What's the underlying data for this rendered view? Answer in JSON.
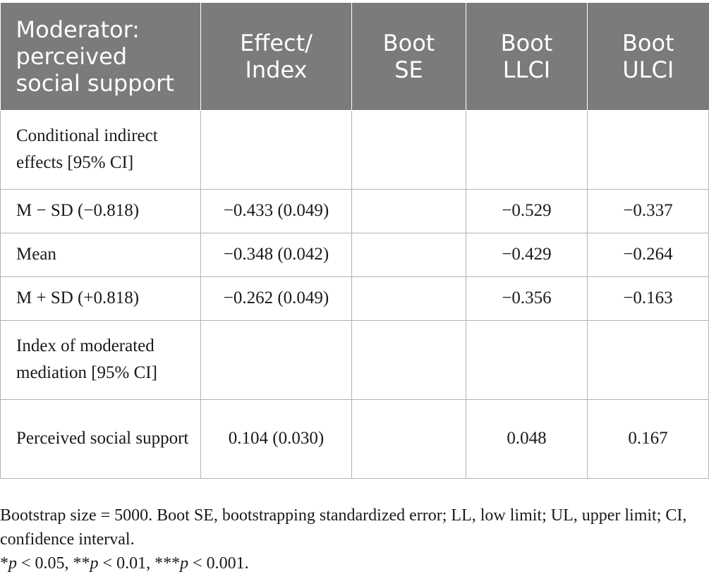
{
  "table": {
    "header": {
      "moderator": [
        "Moderator:",
        "perceived",
        "social support"
      ],
      "effect": [
        "Effect/",
        "Index"
      ],
      "boot_se": [
        "Boot",
        "SE"
      ],
      "boot_llci": [
        "Boot",
        "LLCI"
      ],
      "boot_ulci": [
        "Boot",
        "ULCI"
      ]
    },
    "rows": [
      {
        "label": "Conditional indirect effects [95% CI]",
        "effect": "",
        "boot_se": "",
        "llci": "",
        "ulci": ""
      },
      {
        "label": "M − SD (−0.818)",
        "effect": "−0.433 (0.049)",
        "boot_se": "",
        "llci": "−0.529",
        "ulci": "−0.337"
      },
      {
        "label": "Mean",
        "effect": "−0.348 (0.042)",
        "boot_se": "",
        "llci": "−0.429",
        "ulci": "−0.264"
      },
      {
        "label": "M + SD (+0.818)",
        "effect": "−0.262 (0.049)",
        "boot_se": "",
        "llci": "−0.356",
        "ulci": "−0.163"
      },
      {
        "label": "Index of moderated mediation [95% CI]",
        "effect": "",
        "boot_se": "",
        "llci": "",
        "ulci": ""
      },
      {
        "label": "Perceived social support",
        "effect": "0.104 (0.030)",
        "boot_se": "",
        "llci": "0.048",
        "ulci": "0.167"
      }
    ]
  },
  "footnotes": {
    "note": "Bootstrap size = 5000. Boot SE, bootstrapping standardized error; LL, low limit; UL, upper limit; CI, confidence interval.",
    "sig": [
      {
        "stars": "*",
        "p": "p",
        "rest": " < 0.05, "
      },
      {
        "stars": "**",
        "p": "p",
        "rest": " < 0.01, "
      },
      {
        "stars": "***",
        "p": "p",
        "rest": " < 0.001."
      }
    ]
  }
}
